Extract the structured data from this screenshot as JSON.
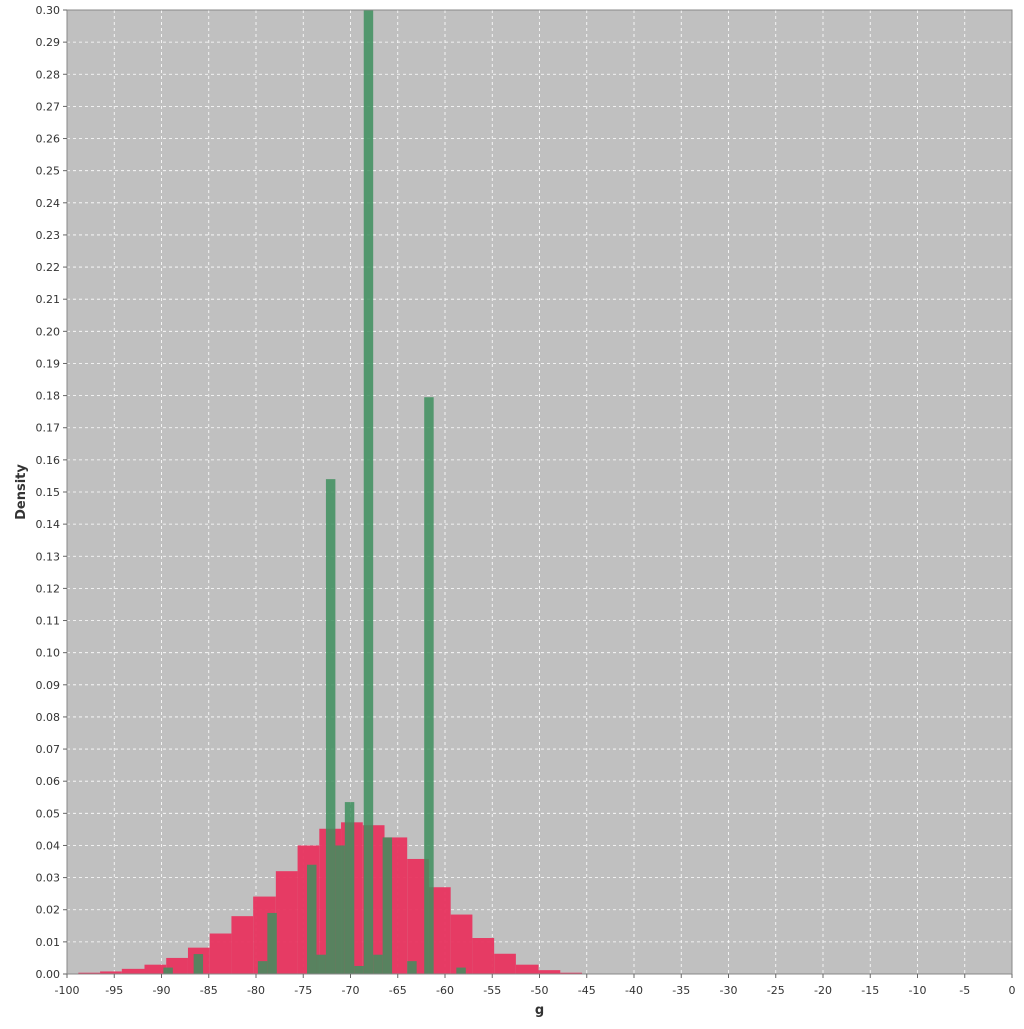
{
  "chart_data": {
    "type": "bar",
    "xlabel": "g",
    "ylabel": "Density",
    "xlim": [
      -100,
      0
    ],
    "ylim": [
      0,
      0.3
    ],
    "x_ticks": [
      "-100",
      "-95",
      "-90",
      "-85",
      "-80",
      "-75",
      "-70",
      "-65",
      "-60",
      "-55",
      "-50",
      "-45",
      "-40",
      "-35",
      "-30",
      "-25",
      "-20",
      "-15",
      "-10",
      "-5",
      "0"
    ],
    "y_ticks": [
      "0.00",
      "0.01",
      "0.02",
      "0.03",
      "0.04",
      "0.05",
      "0.06",
      "0.07",
      "0.08",
      "0.09",
      "0.10",
      "0.11",
      "0.12",
      "0.13",
      "0.14",
      "0.15",
      "0.16",
      "0.17",
      "0.18",
      "0.19",
      "0.20",
      "0.21",
      "0.22",
      "0.23",
      "0.24",
      "0.25",
      "0.26",
      "0.27",
      "0.28",
      "0.29",
      "0.30"
    ],
    "grid": true,
    "plot_background": "#c0c0c0",
    "series": [
      {
        "color": "#e8345f",
        "bins": [
          {
            "x0": -98.8,
            "x1": -96.5,
            "y": 0.0004
          },
          {
            "x0": -96.5,
            "x1": -94.2,
            "y": 0.0008
          },
          {
            "x0": -94.2,
            "x1": -91.8,
            "y": 0.0016
          },
          {
            "x0": -91.8,
            "x1": -89.5,
            "y": 0.0029
          },
          {
            "x0": -89.5,
            "x1": -87.2,
            "y": 0.005
          },
          {
            "x0": -87.2,
            "x1": -84.9,
            "y": 0.0082
          },
          {
            "x0": -84.9,
            "x1": -82.6,
            "y": 0.0126
          },
          {
            "x0": -82.6,
            "x1": -80.3,
            "y": 0.018
          },
          {
            "x0": -80.3,
            "x1": -77.9,
            "y": 0.0241
          },
          {
            "x0": -77.9,
            "x1": -75.6,
            "y": 0.032
          },
          {
            "x0": -75.6,
            "x1": -73.3,
            "y": 0.04
          },
          {
            "x0": -73.3,
            "x1": -71.0,
            "y": 0.0452
          },
          {
            "x0": -71.0,
            "x1": -68.7,
            "y": 0.0472
          },
          {
            "x0": -68.7,
            "x1": -66.4,
            "y": 0.0463
          },
          {
            "x0": -66.4,
            "x1": -64.0,
            "y": 0.0425
          },
          {
            "x0": -64.0,
            "x1": -61.7,
            "y": 0.0358
          },
          {
            "x0": -61.7,
            "x1": -59.4,
            "y": 0.027
          },
          {
            "x0": -59.4,
            "x1": -57.1,
            "y": 0.0185
          },
          {
            "x0": -57.1,
            "x1": -54.8,
            "y": 0.0112
          },
          {
            "x0": -54.8,
            "x1": -52.5,
            "y": 0.0063
          },
          {
            "x0": -52.5,
            "x1": -50.1,
            "y": 0.0029
          },
          {
            "x0": -50.1,
            "x1": -47.8,
            "y": 0.0012
          },
          {
            "x0": -47.8,
            "x1": -45.5,
            "y": 0.0004
          }
        ]
      },
      {
        "color": "#3e8f5e",
        "bins": [
          {
            "x0": -89.8,
            "x1": -88.8,
            "y": 0.002
          },
          {
            "x0": -86.6,
            "x1": -85.6,
            "y": 0.0062
          },
          {
            "x0": -79.8,
            "x1": -78.8,
            "y": 0.004
          },
          {
            "x0": -78.8,
            "x1": -77.8,
            "y": 0.019
          },
          {
            "x0": -74.6,
            "x1": -73.6,
            "y": 0.034
          },
          {
            "x0": -73.6,
            "x1": -72.6,
            "y": 0.006
          },
          {
            "x0": -72.6,
            "x1": -71.6,
            "y": 0.154
          },
          {
            "x0": -71.6,
            "x1": -70.6,
            "y": 0.04
          },
          {
            "x0": -70.6,
            "x1": -69.6,
            "y": 0.0535
          },
          {
            "x0": -69.6,
            "x1": -68.6,
            "y": 0.0025
          },
          {
            "x0": -68.6,
            "x1": -67.6,
            "y": 0.3
          },
          {
            "x0": -67.6,
            "x1": -66.6,
            "y": 0.006
          },
          {
            "x0": -66.6,
            "x1": -65.6,
            "y": 0.0425
          },
          {
            "x0": -64.0,
            "x1": -63.0,
            "y": 0.004
          },
          {
            "x0": -62.2,
            "x1": -61.2,
            "y": 0.1795
          },
          {
            "x0": -58.8,
            "x1": -57.8,
            "y": 0.002
          }
        ]
      }
    ]
  }
}
